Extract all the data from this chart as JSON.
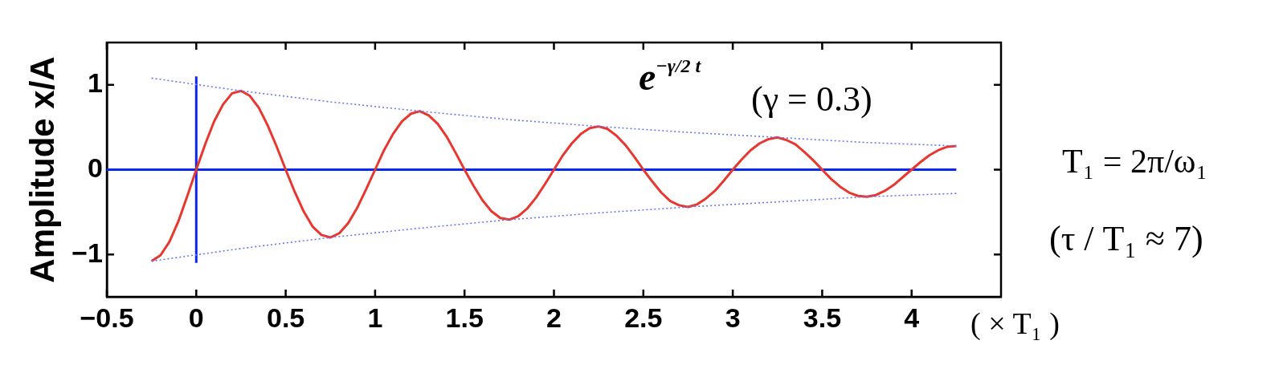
{
  "chart_data": {
    "type": "line",
    "ylabel": "Amplitude x/A",
    "xlabel": "( × T₁ )",
    "annotations": [
      "e$^{−γ/2 t}$",
      "(γ = 0.3)",
      "T₁ = 2π/ω₁",
      "(τ / T₁ ≈ 7)"
    ],
    "xlim": [
      -0.5,
      4.5
    ],
    "xticks": [
      -0.5,
      0,
      0.5,
      1,
      1.5,
      2,
      2.5,
      3,
      3.5,
      4
    ],
    "ylim": [
      -1.5,
      1.5
    ],
    "yticks": [
      -1,
      0,
      1
    ],
    "grid": false,
    "marker": "none",
    "series": [
      {
        "color": "#6877f5",
        "line_style": "dotted",
        "x": [
          -0.25,
          0.25,
          0.75,
          1.25,
          1.75,
          2.25,
          2.75,
          3.25,
          3.75,
          4.25
        ],
        "values": [
          1.08,
          0.93,
          0.8,
          0.69,
          0.59,
          0.51,
          0.44,
          0.38,
          0.32,
          0.28
        ]
      },
      {
        "color": "#6877f5",
        "line_style": "dotted",
        "x": [
          -0.25,
          0.25,
          0.75,
          1.25,
          1.75,
          2.25,
          2.75,
          3.25,
          3.75,
          4.25
        ],
        "values": [
          -1.08,
          -0.93,
          -0.8,
          -0.69,
          -0.59,
          -0.51,
          -0.44,
          -0.38,
          -0.32,
          -0.28
        ]
      },
      {
        "color": "#e8372f",
        "line_style": "solid",
        "x": [
          -0.25,
          -0.2,
          -0.15,
          -0.1,
          -0.05,
          0,
          0.05,
          0.1,
          0.15,
          0.2,
          0.25,
          0.3,
          0.35,
          0.4,
          0.45,
          0.5,
          0.55,
          0.6,
          0.65,
          0.7,
          0.75,
          0.8,
          0.85,
          0.9,
          0.95,
          1,
          1.05,
          1.1,
          1.15,
          1.2,
          1.25,
          1.3,
          1.35,
          1.4,
          1.45,
          1.5,
          1.55,
          1.6,
          1.65,
          1.7,
          1.75,
          1.8,
          1.85,
          1.9,
          1.95,
          2,
          2.05,
          2.1,
          2.15,
          2.2,
          2.25,
          2.3,
          2.35,
          2.4,
          2.45,
          2.5,
          2.55,
          2.6,
          2.65,
          2.7,
          2.75,
          2.8,
          2.85,
          2.9,
          2.95,
          3,
          3.05,
          3.1,
          3.15,
          3.2,
          3.25,
          3.3,
          3.35,
          3.4,
          3.45,
          3.5,
          3.55,
          3.6,
          3.65,
          3.7,
          3.75,
          3.8,
          3.85,
          3.9,
          3.95,
          4,
          4.05,
          4.1,
          4.15,
          4.2,
          4.25
        ],
        "values": [
          -1.08,
          -1.01,
          -0.85,
          -0.61,
          -0.31,
          0,
          0.3,
          0.57,
          0.77,
          0.9,
          0.93,
          0.87,
          0.73,
          0.52,
          0.27,
          0,
          -0.26,
          -0.49,
          -0.67,
          -0.77,
          -0.8,
          -0.75,
          -0.63,
          -0.45,
          -0.23,
          0,
          0.23,
          0.42,
          0.57,
          0.66,
          0.69,
          0.64,
          0.54,
          0.39,
          0.2,
          0,
          -0.19,
          -0.36,
          -0.49,
          -0.57,
          -0.59,
          -0.55,
          -0.46,
          -0.33,
          -0.17,
          0,
          0.17,
          0.31,
          0.42,
          0.49,
          0.51,
          0.48,
          0.4,
          0.29,
          0.15,
          0,
          -0.14,
          -0.27,
          -0.37,
          -0.42,
          -0.44,
          -0.41,
          -0.34,
          -0.25,
          -0.13,
          0,
          0.12,
          0.23,
          0.31,
          0.36,
          0.38,
          0.35,
          0.3,
          0.21,
          0.11,
          0,
          -0.11,
          -0.2,
          -0.27,
          -0.31,
          -0.32,
          -0.3,
          -0.25,
          -0.18,
          -0.09,
          0,
          0.09,
          0.17,
          0.23,
          0.27,
          0.28
        ]
      },
      {
        "color": "#0b28f0",
        "line_style": "solid",
        "x": [
          -0.5,
          4.25
        ],
        "values": [
          0,
          0
        ]
      },
      {
        "color": "#0b28f0",
        "line_style": "solid",
        "x": [
          0,
          0
        ],
        "values": [
          -1.1,
          1.1
        ]
      }
    ]
  }
}
